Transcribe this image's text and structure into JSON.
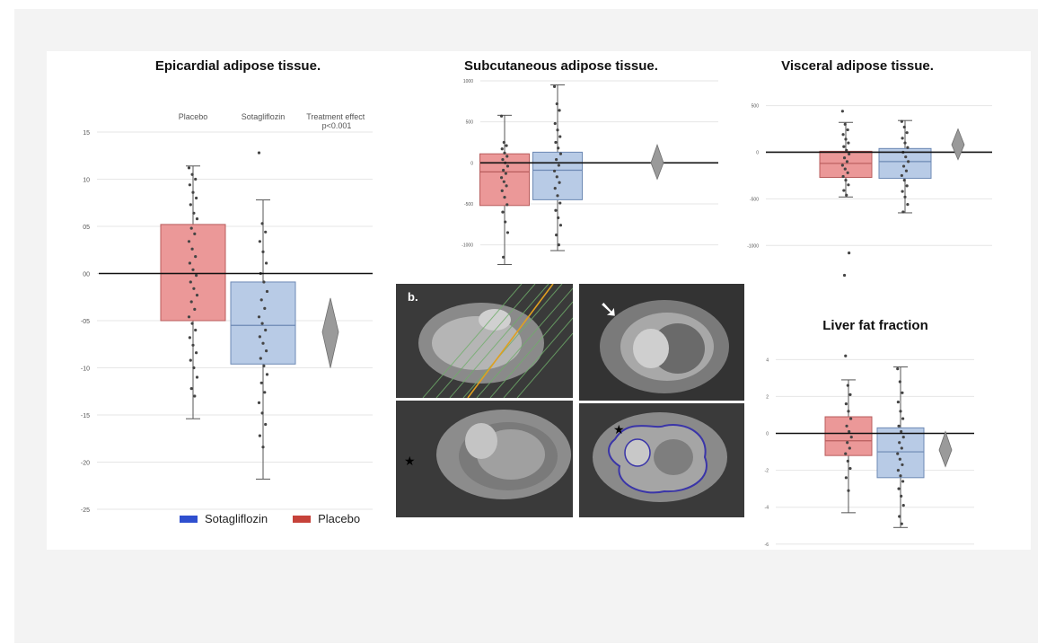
{
  "colors": {
    "placebo_box": "#eb9898",
    "placebo_edge": "#b85c5c",
    "sota_box": "#b8cbe6",
    "sota_edge": "#6d89b4",
    "effect": "#9a9a9a",
    "legend_sota": "#2f4fcf",
    "legend_placebo": "#c6423a"
  },
  "legend": {
    "items": [
      {
        "label": "Sotagliflozin",
        "color_key": "legend_sota"
      },
      {
        "label": "Placebo",
        "color_key": "legend_placebo"
      }
    ]
  },
  "mri": {
    "panel_label": "b.",
    "panels": [
      "mri-image-1",
      "mri-image-2",
      "mri-image-3",
      "mri-image-4"
    ]
  },
  "chart_data": [
    {
      "id": "eat",
      "type": "box",
      "title": "Epicardial adipose tissue.",
      "headers": [
        "Placebo",
        "Sotagliflozin",
        "Treatment effect\np<0.001"
      ],
      "ylim": [
        -25,
        15
      ],
      "yticks": [
        15,
        10,
        5,
        0,
        -5,
        -10,
        -15,
        -20,
        -25
      ],
      "ytick_labels": [
        "15",
        "10",
        "05",
        "00",
        "-05",
        "-10",
        "-15",
        "-20",
        "-25"
      ],
      "series": [
        {
          "name": "Placebo",
          "q1": -5,
          "median": 0,
          "q3": 5.2,
          "min": -15.4,
          "max": 11.4,
          "points": [
            11.2,
            10.5,
            10,
            9.4,
            8.6,
            8,
            7.3,
            6.4,
            5.8,
            4.8,
            4.2,
            3.4,
            2.6,
            1.8,
            1.1,
            0.4,
            -0.2,
            -0.9,
            -1.6,
            -2.3,
            -3,
            -3.8,
            -4.6,
            -5.3,
            -6,
            -6.8,
            -7.6,
            -8.4,
            -9.2,
            -10,
            -11,
            -12.2,
            -13
          ]
        },
        {
          "name": "Sotagliflozin",
          "q1": -9.6,
          "median": -5.5,
          "q3": -0.9,
          "min": -21.8,
          "max": 7.8,
          "points": [
            12.8,
            5.3,
            4.4,
            3.4,
            2.3,
            1.1,
            0,
            -0.9,
            -1.9,
            -2.8,
            -3.7,
            -4.6,
            -5.3,
            -6,
            -6.7,
            -7.4,
            -8.2,
            -9,
            -9.8,
            -10.7,
            -11.6,
            -12.6,
            -13.7,
            -14.8,
            -16,
            -17.2,
            -18.4
          ]
        }
      ],
      "effect": {
        "center": -6.2,
        "low": -10,
        "high": -2.6
      }
    },
    {
      "id": "sat",
      "type": "box",
      "title": "Subcutaneous adipose tissue.",
      "ylim": [
        -1300,
        1000
      ],
      "yticks": [
        1000,
        500,
        0,
        -500,
        -1000
      ],
      "ytick_labels": [
        "1000",
        "500",
        "0",
        "-500",
        "-1000"
      ],
      "series": [
        {
          "name": "Placebo",
          "q1": -520,
          "median": -110,
          "q3": 110,
          "min": -1240,
          "max": 580,
          "points": [
            570,
            250,
            210,
            170,
            120,
            80,
            40,
            0,
            -40,
            -90,
            -130,
            -180,
            -230,
            -280,
            -340,
            -420,
            -510,
            -600,
            -720,
            -850,
            -1150
          ]
        },
        {
          "name": "Sotagliflozin",
          "q1": -450,
          "median": -90,
          "q3": 130,
          "min": -1070,
          "max": 950,
          "points": [
            930,
            720,
            640,
            480,
            400,
            320,
            250,
            180,
            110,
            40,
            -30,
            -100,
            -170,
            -240,
            -310,
            -400,
            -490,
            -580,
            -670,
            -760,
            -880,
            -1000
          ]
        }
      ],
      "effect": {
        "center": 0,
        "low": -200,
        "high": 220
      }
    },
    {
      "id": "vat",
      "type": "box",
      "title": "Visceral adipose tissue.",
      "ylim": [
        -1450,
        650
      ],
      "yticks": [
        500,
        0,
        -500,
        -1000
      ],
      "ytick_labels": [
        "500",
        "0",
        "-500",
        "-1000"
      ],
      "series": [
        {
          "name": "Placebo",
          "q1": -270,
          "median": -120,
          "q3": 10,
          "min": -480,
          "max": 320,
          "points": [
            440,
            300,
            240,
            190,
            140,
            100,
            60,
            20,
            -20,
            -60,
            -100,
            -140,
            -180,
            -220,
            -260,
            -300,
            -350,
            -410,
            -460,
            -1080,
            -1320
          ]
        },
        {
          "name": "Sotagliflozin",
          "q1": -280,
          "median": -100,
          "q3": 40,
          "min": -650,
          "max": 340,
          "points": [
            330,
            270,
            210,
            150,
            100,
            50,
            0,
            -50,
            -100,
            -150,
            -200,
            -250,
            -300,
            -360,
            -420,
            -480,
            -560,
            -640
          ]
        }
      ],
      "effect": {
        "center": 80,
        "low": -80,
        "high": 250
      }
    },
    {
      "id": "lff",
      "type": "box",
      "title": "Liver fat fraction",
      "ylim": [
        -6.4,
        4.6
      ],
      "yticks": [
        4,
        2,
        0,
        -2,
        -4,
        -6
      ],
      "ytick_labels": [
        "4",
        "2",
        "0",
        "-2",
        "-4",
        "-6"
      ],
      "series": [
        {
          "name": "Placebo",
          "q1": -1.2,
          "median": -0.4,
          "q3": 0.9,
          "min": -4.3,
          "max": 2.9,
          "points": [
            4.2,
            2.6,
            2.1,
            1.6,
            1.2,
            0.8,
            0.4,
            0.1,
            -0.2,
            -0.5,
            -0.8,
            -1.1,
            -1.5,
            -1.9,
            -2.4,
            -3.1
          ]
        },
        {
          "name": "Sotagliflozin",
          "q1": -2.4,
          "median": -1,
          "q3": 0.3,
          "min": -5.1,
          "max": 3.6,
          "points": [
            3.5,
            2.8,
            2.2,
            1.7,
            1.2,
            0.8,
            0.4,
            0.1,
            -0.2,
            -0.5,
            -0.8,
            -1.1,
            -1.4,
            -1.7,
            -2,
            -2.3,
            -2.6,
            -3,
            -3.4,
            -3.9,
            -4.5,
            -4.9
          ]
        }
      ],
      "effect": {
        "center": -0.9,
        "low": -1.8,
        "high": 0.1
      }
    }
  ]
}
